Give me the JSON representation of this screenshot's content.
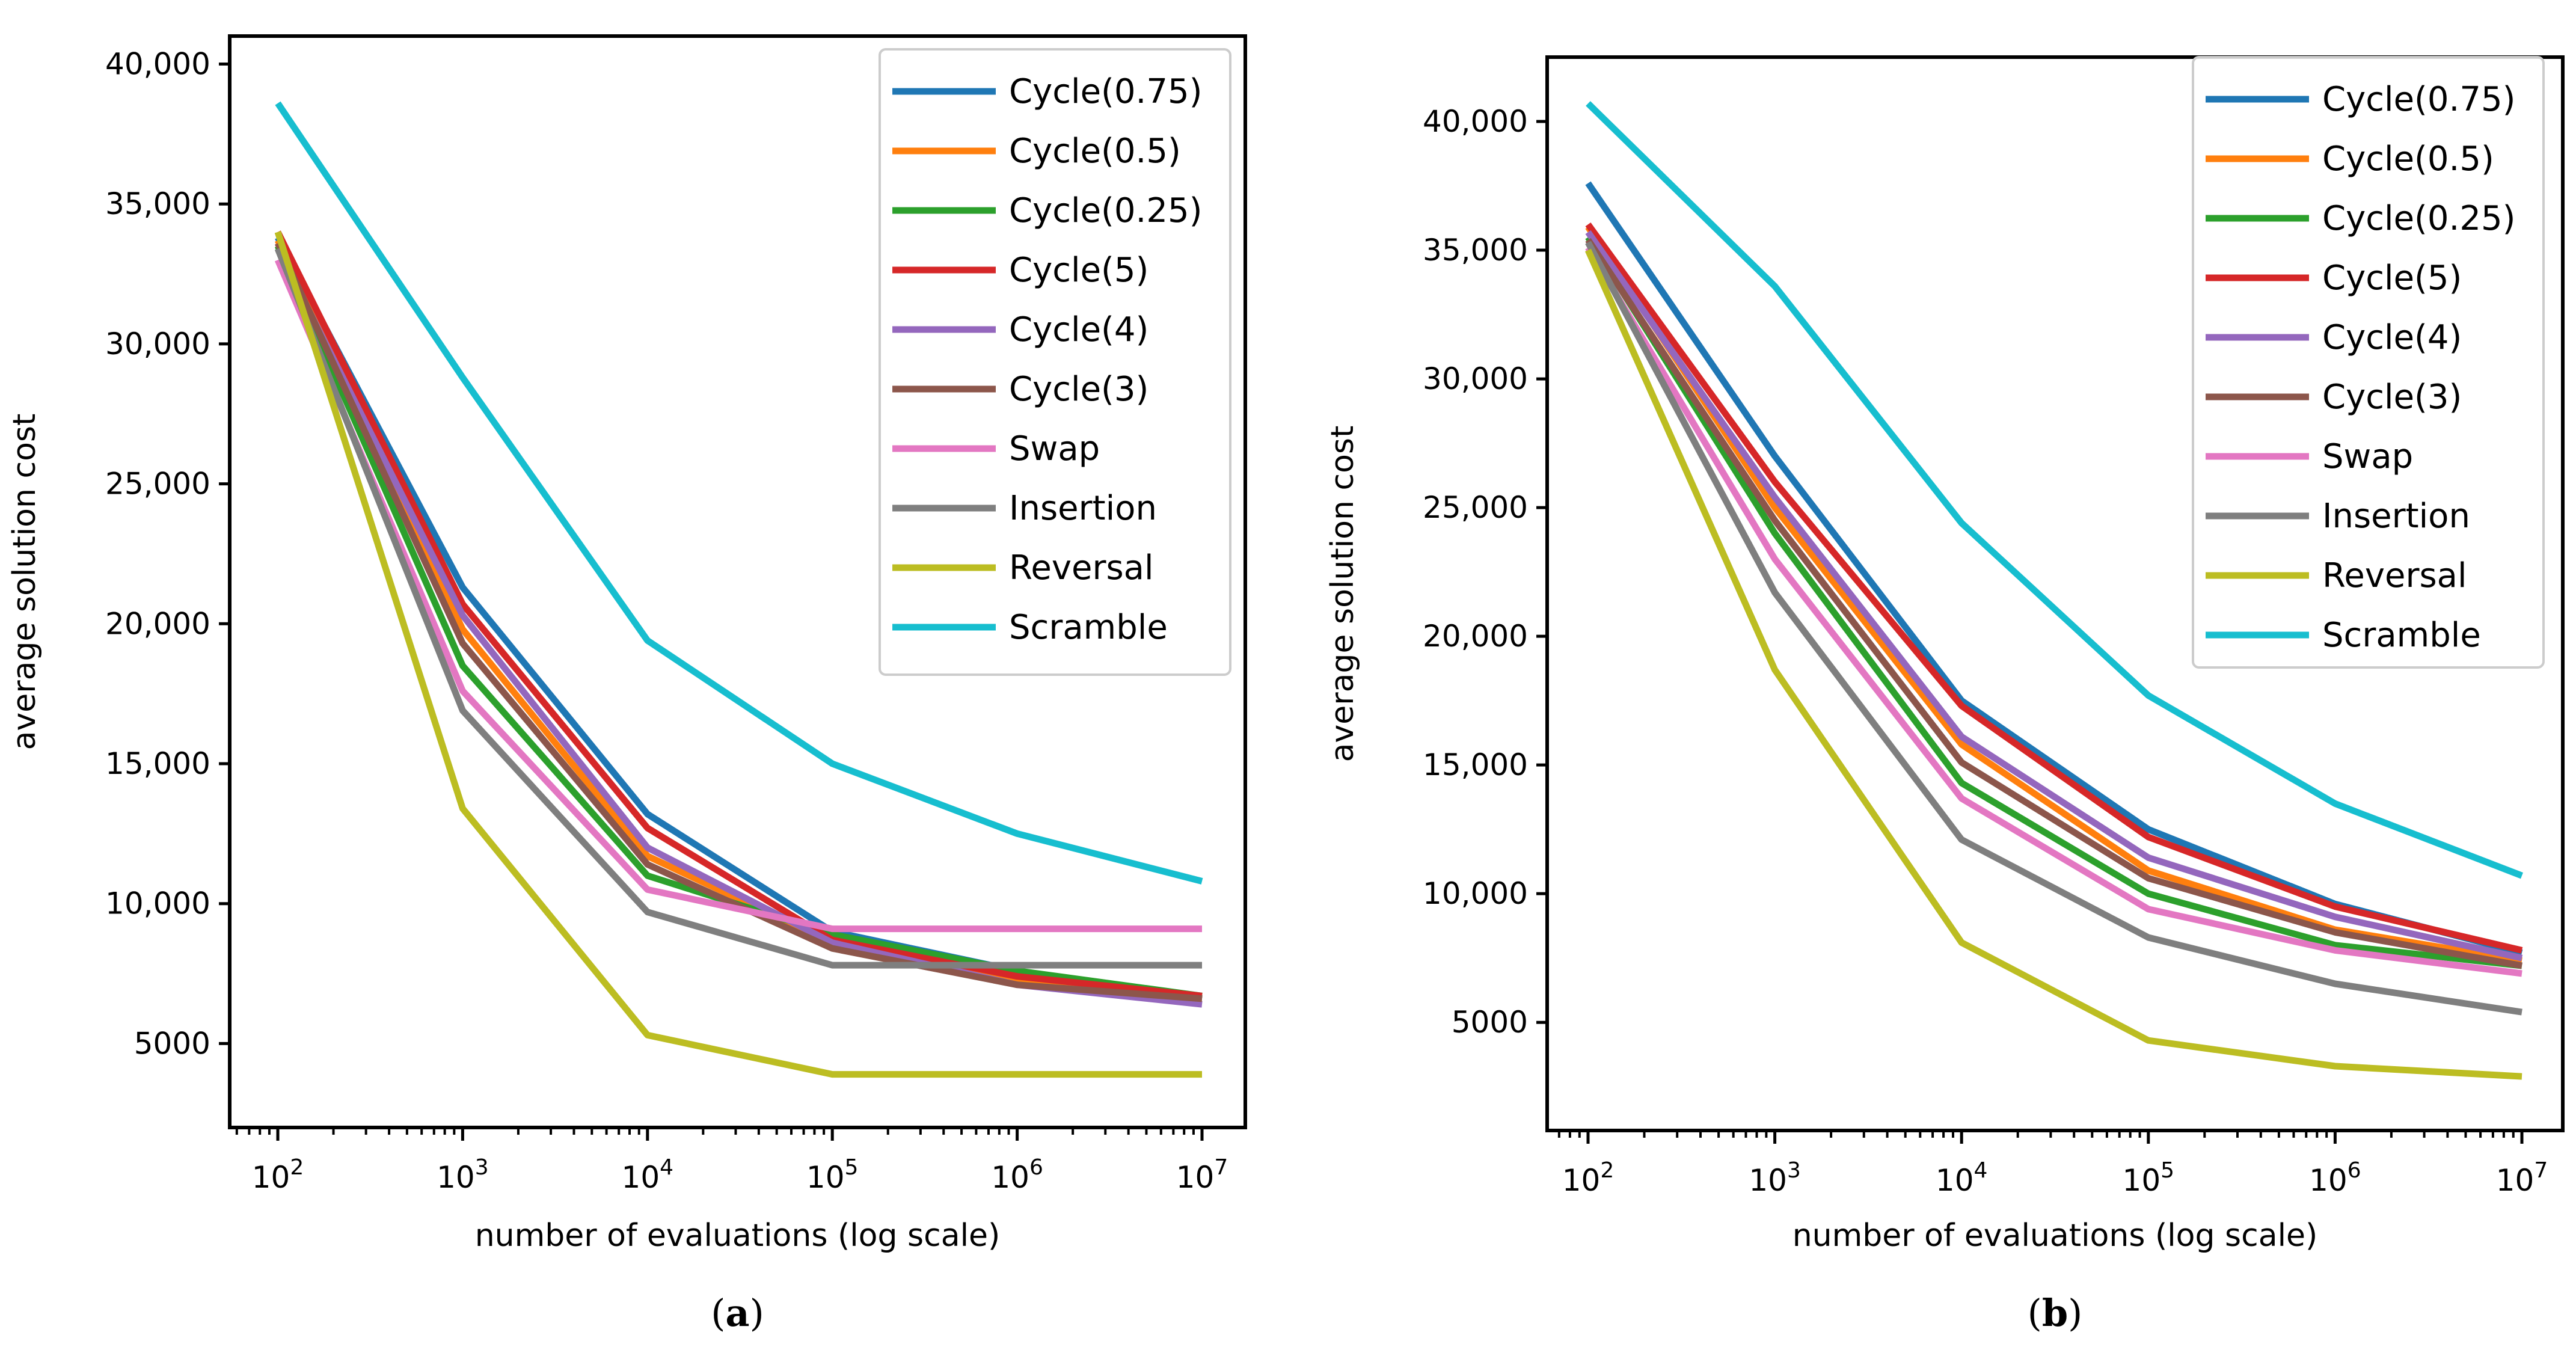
{
  "chart_data": [
    {
      "type": "line",
      "panel_label": "a",
      "xscale": "log",
      "x": [
        100,
        1000,
        10000,
        100000,
        1000000,
        10000000
      ],
      "xtick_labels": [
        {
          "base": "10",
          "exp": "2"
        },
        {
          "base": "10",
          "exp": "3"
        },
        {
          "base": "10",
          "exp": "4"
        },
        {
          "base": "10",
          "exp": "5"
        },
        {
          "base": "10",
          "exp": "6"
        },
        {
          "base": "10",
          "exp": "7"
        }
      ],
      "xlabel": "number of evaluations (log scale)",
      "ylabel": "average solution cost",
      "ylim": [
        2000,
        41000
      ],
      "yticks": [
        5000,
        10000,
        15000,
        20000,
        25000,
        30000,
        35000,
        40000
      ],
      "ytick_labels": [
        "5000",
        "10,000",
        "15,000",
        "20,000",
        "25,000",
        "30,000",
        "35,000",
        "40,000"
      ],
      "legend_position": "top-right",
      "series": [
        {
          "name": "Cycle(0.75)",
          "color": "#1f77b4",
          "values": [
            33800,
            21300,
            13200,
            9000,
            7600,
            6600
          ]
        },
        {
          "name": "Cycle(0.5)",
          "color": "#ff7f0e",
          "values": [
            33700,
            19800,
            11700,
            8600,
            7300,
            6600
          ]
        },
        {
          "name": "Cycle(0.25)",
          "color": "#2ca02c",
          "values": [
            33500,
            18500,
            11000,
            8900,
            7600,
            6700
          ]
        },
        {
          "name": "Cycle(5)",
          "color": "#d62728",
          "values": [
            34000,
            20700,
            12700,
            8700,
            7400,
            6700
          ]
        },
        {
          "name": "Cycle(4)",
          "color": "#9467bd",
          "values": [
            33400,
            20300,
            12000,
            8600,
            7100,
            6400
          ]
        },
        {
          "name": "Cycle(3)",
          "color": "#8c564b",
          "values": [
            33600,
            19300,
            11400,
            8400,
            7100,
            6600
          ]
        },
        {
          "name": "Swap",
          "color": "#e377c2",
          "values": [
            33000,
            17600,
            10500,
            9100,
            9100,
            9100
          ]
        },
        {
          "name": "Insertion",
          "color": "#7f7f7f",
          "values": [
            33400,
            16900,
            9700,
            7800,
            7800,
            7800
          ]
        },
        {
          "name": "Reversal",
          "color": "#bcbd22",
          "values": [
            34000,
            13400,
            5300,
            3900,
            3900,
            3900
          ]
        },
        {
          "name": "Scramble",
          "color": "#17becf",
          "values": [
            38600,
            28800,
            19400,
            15000,
            12500,
            10800
          ]
        }
      ]
    },
    {
      "type": "line",
      "panel_label": "b",
      "xscale": "log",
      "x": [
        100,
        1000,
        10000,
        100000,
        1000000,
        10000000
      ],
      "xtick_labels": [
        {
          "base": "10",
          "exp": "2"
        },
        {
          "base": "10",
          "exp": "3"
        },
        {
          "base": "10",
          "exp": "4"
        },
        {
          "base": "10",
          "exp": "5"
        },
        {
          "base": "10",
          "exp": "6"
        },
        {
          "base": "10",
          "exp": "7"
        }
      ],
      "xlabel": "number of evaluations (log scale)",
      "ylabel": "average solution cost",
      "ylim": [
        800,
        42500
      ],
      "yticks": [
        5000,
        10000,
        15000,
        20000,
        25000,
        30000,
        35000,
        40000
      ],
      "ytick_labels": [
        "5000",
        "10,000",
        "15,000",
        "20,000",
        "25,000",
        "30,000",
        "35,000",
        "40,000"
      ],
      "legend_position": "top-right",
      "series": [
        {
          "name": "Cycle(0.75)",
          "color": "#1f77b4",
          "values": [
            37600,
            27000,
            17500,
            12500,
            9600,
            7700
          ]
        },
        {
          "name": "Cycle(0.5)",
          "color": "#ff7f0e",
          "values": [
            35900,
            25000,
            15800,
            10900,
            8600,
            7400
          ]
        },
        {
          "name": "Cycle(0.25)",
          "color": "#2ca02c",
          "values": [
            35500,
            24000,
            14300,
            10000,
            8000,
            7200
          ]
        },
        {
          "name": "Cycle(5)",
          "color": "#d62728",
          "values": [
            36000,
            26000,
            17300,
            12200,
            9500,
            7800
          ]
        },
        {
          "name": "Cycle(4)",
          "color": "#9467bd",
          "values": [
            35700,
            25400,
            16100,
            11400,
            9100,
            7500
          ]
        },
        {
          "name": "Cycle(3)",
          "color": "#8c564b",
          "values": [
            35400,
            24500,
            15100,
            10600,
            8500,
            7200
          ]
        },
        {
          "name": "Swap",
          "color": "#e377c2",
          "values": [
            35100,
            23000,
            13700,
            9400,
            7800,
            6900
          ]
        },
        {
          "name": "Insertion",
          "color": "#7f7f7f",
          "values": [
            35300,
            21700,
            12100,
            8300,
            6500,
            5400
          ]
        },
        {
          "name": "Reversal",
          "color": "#bcbd22",
          "values": [
            35000,
            18700,
            8100,
            4300,
            3300,
            2900
          ]
        },
        {
          "name": "Scramble",
          "color": "#17becf",
          "values": [
            40700,
            33600,
            24400,
            17700,
            13500,
            10700
          ]
        }
      ]
    }
  ]
}
